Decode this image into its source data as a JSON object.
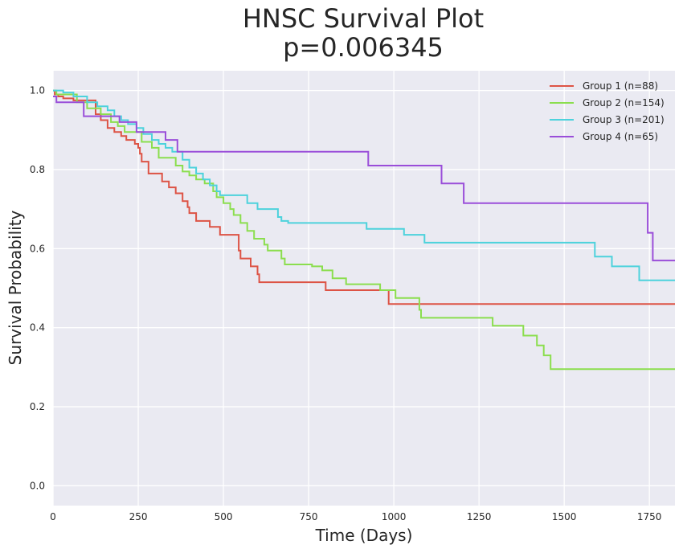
{
  "chart_data": {
    "type": "line",
    "step": true,
    "title": "HNSC Survival Plot",
    "subtitle": "p=0.006345",
    "xlabel": "Time (Days)",
    "ylabel": "Survival Probability",
    "xlim": [
      0,
      1825
    ],
    "ylim": [
      -0.05,
      1.05
    ],
    "xticks": [
      0,
      250,
      500,
      750,
      1000,
      1250,
      1500,
      1750
    ],
    "yticks": [
      0.0,
      0.2,
      0.4,
      0.6,
      0.8,
      1.0
    ],
    "xtick_labels": [
      "0",
      "250",
      "500",
      "750",
      "1000",
      "1250",
      "1500",
      "1750"
    ],
    "ytick_labels": [
      "0.0",
      "0.2",
      "0.4",
      "0.6",
      "0.8",
      "1.0"
    ],
    "grid": true,
    "legend_position": "top-right",
    "background_color": "#eaeaf2",
    "series": [
      {
        "name": "Group 1 (n=88)",
        "color": "#dd5345",
        "x": [
          0,
          5,
          15,
          30,
          60,
          125,
          140,
          160,
          180,
          200,
          215,
          240,
          250,
          255,
          260,
          280,
          320,
          340,
          360,
          380,
          395,
          400,
          420,
          460,
          490,
          545,
          550,
          580,
          600,
          605,
          800,
          870,
          985,
          1825
        ],
        "y": [
          1.0,
          0.99,
          0.985,
          0.98,
          0.975,
          0.94,
          0.925,
          0.905,
          0.895,
          0.885,
          0.875,
          0.865,
          0.855,
          0.84,
          0.82,
          0.79,
          0.77,
          0.755,
          0.74,
          0.72,
          0.705,
          0.69,
          0.67,
          0.655,
          0.635,
          0.595,
          0.575,
          0.555,
          0.535,
          0.515,
          0.495,
          0.495,
          0.46,
          0.46
        ]
      },
      {
        "name": "Group 2 (n=154)",
        "color": "#8bde4e",
        "x": [
          0,
          10,
          70,
          100,
          140,
          170,
          190,
          210,
          260,
          290,
          310,
          360,
          380,
          400,
          420,
          445,
          470,
          480,
          500,
          520,
          530,
          550,
          570,
          590,
          620,
          630,
          670,
          680,
          760,
          790,
          820,
          860,
          960,
          1005,
          1075,
          1080,
          1260,
          1290,
          1380,
          1420,
          1440,
          1460,
          1825
        ],
        "y": [
          1.0,
          0.99,
          0.97,
          0.955,
          0.94,
          0.92,
          0.91,
          0.895,
          0.87,
          0.855,
          0.83,
          0.81,
          0.795,
          0.785,
          0.775,
          0.765,
          0.745,
          0.73,
          0.715,
          0.7,
          0.685,
          0.665,
          0.645,
          0.625,
          0.61,
          0.595,
          0.575,
          0.56,
          0.555,
          0.545,
          0.525,
          0.51,
          0.495,
          0.475,
          0.445,
          0.425,
          0.425,
          0.405,
          0.38,
          0.355,
          0.33,
          0.295,
          0.295
        ]
      },
      {
        "name": "Group 3 (n=201)",
        "color": "#4dd2dc",
        "x": [
          0,
          30,
          60,
          100,
          130,
          160,
          180,
          200,
          220,
          245,
          265,
          290,
          310,
          330,
          350,
          380,
          400,
          420,
          440,
          460,
          480,
          490,
          500,
          570,
          600,
          660,
          670,
          690,
          920,
          1030,
          1090,
          1590,
          1640,
          1720,
          1825
        ],
        "y": [
          1.0,
          0.995,
          0.985,
          0.97,
          0.96,
          0.95,
          0.935,
          0.925,
          0.915,
          0.905,
          0.89,
          0.875,
          0.865,
          0.855,
          0.845,
          0.825,
          0.805,
          0.79,
          0.775,
          0.76,
          0.745,
          0.735,
          0.735,
          0.715,
          0.7,
          0.68,
          0.67,
          0.665,
          0.65,
          0.635,
          0.615,
          0.58,
          0.555,
          0.52,
          0.52
        ]
      },
      {
        "name": "Group 4 (n=65)",
        "color": "#9a4ed9",
        "x": [
          0,
          10,
          90,
          195,
          245,
          330,
          365,
          925,
          1140,
          1205,
          1745,
          1760,
          1825
        ],
        "y": [
          0.985,
          0.97,
          0.935,
          0.92,
          0.895,
          0.875,
          0.845,
          0.81,
          0.765,
          0.715,
          0.64,
          0.57,
          0.57
        ]
      }
    ]
  }
}
